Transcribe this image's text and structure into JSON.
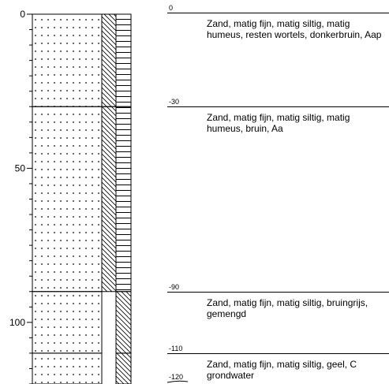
{
  "axis": {
    "ticks": [
      {
        "value": 0,
        "label": "0"
      },
      {
        "value": 50,
        "label": "50"
      },
      {
        "value": 100,
        "label": "100"
      }
    ],
    "max_depth": 120
  },
  "layers": [
    {
      "top": 0,
      "bottom": 30,
      "top_label": "0",
      "description": "Zand, matig fijn, matig siltig, matig humeus, resten wortels, donkerbruin, Aap",
      "lithology": "sand-dotted",
      "humus": true
    },
    {
      "top": 30,
      "bottom": 90,
      "top_label": "-30",
      "description": "Zand, matig fijn, matig siltig, matig humeus, bruin, Aa",
      "lithology": "sand-dotted",
      "humus": true
    },
    {
      "top": 90,
      "bottom": 110,
      "top_label": "-90",
      "description": "Zand, matig fijn, matig siltig, bruingrijs, gemengd",
      "lithology": "sand-dotted",
      "humus": false
    },
    {
      "top": 110,
      "bottom": 120,
      "top_label": "-110",
      "description": "Zand, matig fijn, matig siltig, geel, C grondwater",
      "lithology": "sand-dotted",
      "humus": false
    }
  ],
  "bottom_label": "-120"
}
